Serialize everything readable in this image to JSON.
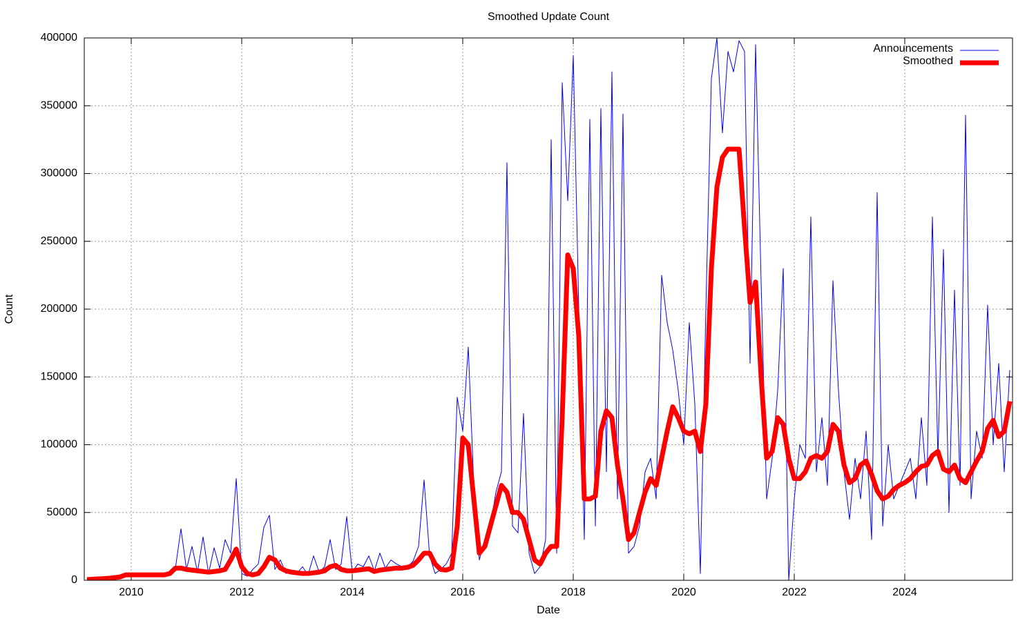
{
  "chart_data": {
    "type": "line",
    "title": "Smoothed Update Count",
    "x_label": "Date",
    "y_label": "Count",
    "xlim": [
      2009.15,
      2025.95
    ],
    "xticks": [
      2010,
      2012,
      2014,
      2016,
      2018,
      2020,
      2022,
      2024
    ],
    "ylim": [
      0,
      400000
    ],
    "yticks": [
      0,
      50000,
      100000,
      150000,
      200000,
      250000,
      300000,
      350000,
      400000
    ],
    "grid": true,
    "legend": "top-right",
    "x": [
      2009.2,
      2009.3,
      2009.4,
      2009.5,
      2009.6,
      2009.7,
      2009.8,
      2009.9,
      2010.0,
      2010.1,
      2010.2,
      2010.3,
      2010.4,
      2010.5,
      2010.6,
      2010.7,
      2010.8,
      2010.9,
      2011.0,
      2011.1,
      2011.2,
      2011.3,
      2011.4,
      2011.5,
      2011.6,
      2011.7,
      2011.8,
      2011.9,
      2012.0,
      2012.1,
      2012.2,
      2012.3,
      2012.4,
      2012.5,
      2012.6,
      2012.7,
      2012.8,
      2012.9,
      2013.0,
      2013.1,
      2013.2,
      2013.3,
      2013.4,
      2013.5,
      2013.6,
      2013.7,
      2013.8,
      2013.9,
      2014.0,
      2014.1,
      2014.2,
      2014.3,
      2014.4,
      2014.5,
      2014.6,
      2014.7,
      2014.8,
      2014.9,
      2015.0,
      2015.1,
      2015.2,
      2015.3,
      2015.4,
      2015.5,
      2015.6,
      2015.7,
      2015.8,
      2015.9,
      2016.0,
      2016.1,
      2016.2,
      2016.3,
      2016.4,
      2016.5,
      2016.6,
      2016.7,
      2016.8,
      2016.9,
      2017.0,
      2017.1,
      2017.2,
      2017.3,
      2017.4,
      2017.5,
      2017.6,
      2017.7,
      2017.8,
      2017.9,
      2018.0,
      2018.1,
      2018.2,
      2018.3,
      2018.4,
      2018.5,
      2018.6,
      2018.7,
      2018.8,
      2018.9,
      2019.0,
      2019.1,
      2019.2,
      2019.3,
      2019.4,
      2019.5,
      2019.6,
      2019.7,
      2019.8,
      2019.9,
      2020.0,
      2020.1,
      2020.2,
      2020.3,
      2020.4,
      2020.5,
      2020.6,
      2020.7,
      2020.8,
      2020.9,
      2021.0,
      2021.1,
      2021.2,
      2021.3,
      2021.4,
      2021.5,
      2021.6,
      2021.7,
      2021.8,
      2021.9,
      2022.0,
      2022.1,
      2022.2,
      2022.3,
      2022.4,
      2022.5,
      2022.6,
      2022.7,
      2022.8,
      2022.9,
      2023.0,
      2023.1,
      2023.2,
      2023.3,
      2023.4,
      2023.5,
      2023.6,
      2023.7,
      2023.8,
      2023.9,
      2024.0,
      2024.1,
      2024.2,
      2024.3,
      2024.4,
      2024.5,
      2024.6,
      2024.7,
      2024.8,
      2024.9,
      2025.0,
      2025.1,
      2025.2,
      2025.3,
      2025.4,
      2025.5,
      2025.6,
      2025.7,
      2025.8,
      2025.9
    ],
    "series": [
      {
        "name": "Announcements",
        "color": "#0000ff",
        "width": 1,
        "values": [
          1000,
          1500,
          2000,
          1000,
          2500,
          3000,
          2000,
          4000,
          3000,
          4000,
          3500,
          4000,
          3000,
          5000,
          4000,
          6000,
          9000,
          38000,
          8000,
          25000,
          6000,
          32000,
          5000,
          24000,
          9000,
          30000,
          20000,
          75000,
          5000,
          3000,
          8000,
          12000,
          39000,
          48000,
          8000,
          15000,
          5000,
          7000,
          5000,
          10000,
          4000,
          18000,
          6000,
          10000,
          30000,
          8000,
          12000,
          47000,
          6000,
          12000,
          10000,
          18000,
          7000,
          20000,
          9000,
          15000,
          12000,
          10000,
          10000,
          14000,
          25000,
          74000,
          18000,
          5000,
          8000,
          12000,
          20000,
          135000,
          110000,
          172000,
          70000,
          15000,
          30000,
          40000,
          65000,
          80000,
          308000,
          40000,
          35000,
          123000,
          20000,
          5000,
          10000,
          30000,
          325000,
          20000,
          367000,
          280000,
          387000,
          200000,
          30000,
          340000,
          40000,
          348000,
          80000,
          375000,
          60000,
          344000,
          20000,
          25000,
          40000,
          80000,
          90000,
          60000,
          225000,
          190000,
          170000,
          140000,
          100000,
          190000,
          130000,
          5000,
          200000,
          370000,
          400000,
          330000,
          390000,
          375000,
          398000,
          390000,
          160000,
          395000,
          220000,
          60000,
          90000,
          140000,
          230000,
          0,
          60000,
          100000,
          90000,
          268000,
          80000,
          120000,
          70000,
          221000,
          140000,
          80000,
          45000,
          90000,
          60000,
          110000,
          30000,
          286000,
          40000,
          100000,
          60000,
          70000,
          80000,
          90000,
          60000,
          120000,
          70000,
          268000,
          90000,
          244000,
          50000,
          214000,
          70000,
          343000,
          60000,
          110000,
          90000,
          203000,
          100000,
          160000,
          80000,
          155000
        ]
      },
      {
        "name": "Smoothed",
        "color": "#ff0000",
        "width": 7,
        "values": [
          500,
          800,
          1000,
          1200,
          1500,
          2000,
          2500,
          4000,
          4000,
          4000,
          4000,
          4000,
          4000,
          4000,
          4000,
          5000,
          9000,
          9000,
          8000,
          7500,
          7000,
          6500,
          6000,
          6500,
          7000,
          8000,
          15000,
          23000,
          10000,
          5000,
          4000,
          5000,
          10000,
          17000,
          15000,
          9000,
          7000,
          6000,
          5500,
          5000,
          5000,
          5500,
          6000,
          7000,
          10000,
          11000,
          8000,
          7000,
          7000,
          7500,
          8000,
          8500,
          6500,
          7500,
          8000,
          8500,
          9000,
          9000,
          9500,
          11000,
          15000,
          20000,
          20000,
          12000,
          8000,
          7500,
          9000,
          40000,
          105000,
          100000,
          60000,
          20000,
          25000,
          40000,
          55000,
          70000,
          65000,
          50000,
          50000,
          45000,
          30000,
          15000,
          12000,
          20000,
          25000,
          25000,
          120000,
          240000,
          230000,
          180000,
          60000,
          60000,
          62000,
          110000,
          125000,
          120000,
          85000,
          60000,
          30000,
          35000,
          50000,
          65000,
          75000,
          70000,
          90000,
          110000,
          128000,
          120000,
          110000,
          108000,
          110000,
          95000,
          130000,
          230000,
          290000,
          312000,
          318000,
          318000,
          318000,
          260000,
          205000,
          220000,
          150000,
          90000,
          95000,
          120000,
          115000,
          90000,
          75000,
          75000,
          80000,
          90000,
          92000,
          90000,
          95000,
          115000,
          110000,
          85000,
          72000,
          75000,
          85000,
          88000,
          78000,
          66000,
          60000,
          62000,
          67000,
          70000,
          72000,
          75000,
          80000,
          84000,
          85000,
          92000,
          95000,
          82000,
          80000,
          85000,
          75000,
          72000,
          80000,
          88000,
          95000,
          112000,
          118000,
          106000,
          110000,
          132000
        ]
      }
    ]
  }
}
